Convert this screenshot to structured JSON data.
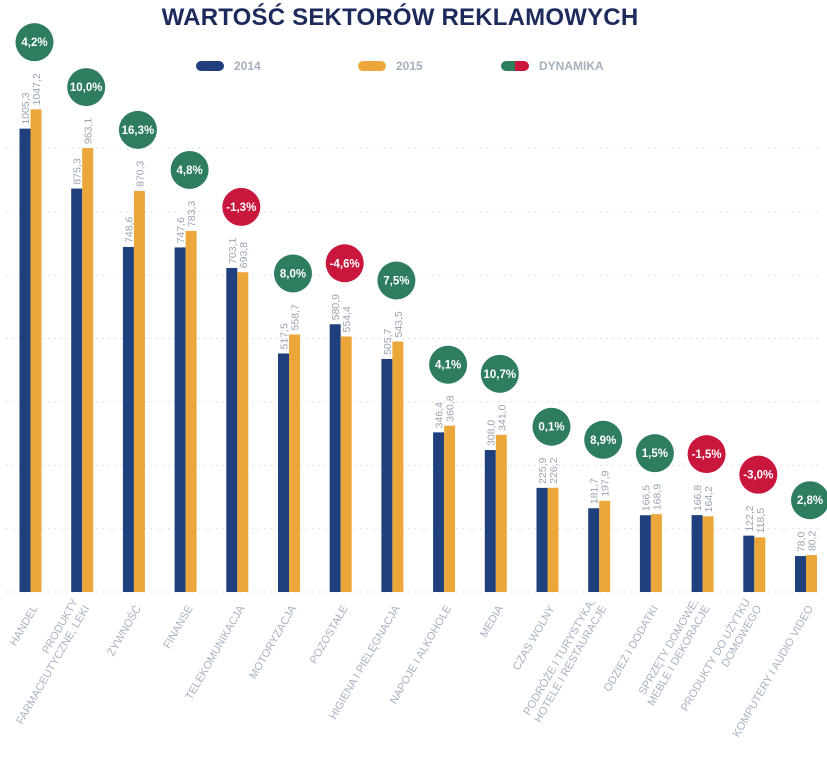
{
  "chart_data": {
    "type": "bar",
    "title": "WARTOŚĆ SEKTORÓW REKLAMOWYCH",
    "categories": [
      [
        "HANDEL"
      ],
      [
        "PRODUKTY",
        "FARMACEUTYCZNE, LEKI"
      ],
      [
        "ŻYWNOŚĆ"
      ],
      [
        "FINANSE"
      ],
      [
        "TELEKOMUNIKACJA"
      ],
      [
        "MOTORYZACJA"
      ],
      [
        "POZOSTAŁE"
      ],
      [
        "HIGIENA I PIELĘGNACJA"
      ],
      [
        "NAPOJE I ALKOHOLE"
      ],
      [
        "MEDIA"
      ],
      [
        "CZAS WOLNY"
      ],
      [
        "PODRÓŻE I TURYSTYKA,",
        "HOTELE I RESTAURACJE"
      ],
      [
        "ODZIEŻ I DODATKI"
      ],
      [
        "SPRZĘTY DOMOWE,",
        "MEBLE I DEKORACJE"
      ],
      [
        "PRODUKTY DO UŻYTKU",
        "DOMOWEGO"
      ],
      [
        "KOMPUTERY I AUDIO VIDEO"
      ]
    ],
    "series": [
      {
        "name": "2014",
        "color": "#1f3f7d",
        "values": [
          1005.3,
          875.3,
          748.6,
          747.6,
          703.1,
          517.5,
          580.9,
          505.7,
          346.4,
          308.0,
          225.9,
          181.7,
          166.5,
          166.8,
          122.2,
          78.0
        ],
        "labels": [
          "1005,3",
          "875,3",
          "748,6",
          "747,6",
          "703,1",
          "517,5",
          "580,9",
          "505,7",
          "346,4",
          "308,0",
          "225,9",
          "181,7",
          "166,5",
          "166,8",
          "122,2",
          "78,0"
        ]
      },
      {
        "name": "2015",
        "color": "#eca73b",
        "values": [
          1047.2,
          963.1,
          870.3,
          783.3,
          693.8,
          558.7,
          554.4,
          543.5,
          360.8,
          341.0,
          226.2,
          197.9,
          168.9,
          164.2,
          118.5,
          80.2
        ],
        "labels": [
          "1047,2",
          "963,1",
          "870,3",
          "783,3",
          "693,8",
          "558,7",
          "554,4",
          "543,5",
          "360,8",
          "341,0",
          "226,2",
          "197,9",
          "168,9",
          "164,2",
          "118,5",
          "80,2"
        ]
      }
    ],
    "dynamics": {
      "name": "DYNAMIKA",
      "labels": [
        "4,2%",
        "10,0%",
        "16,3%",
        "4,8%",
        "-1,3%",
        "8,0%",
        "-4,6%",
        "7,5%",
        "4,1%",
        "10,7%",
        "0,1%",
        "8,9%",
        "1,5%",
        "-1,5%",
        "-3,0%",
        "2,8%"
      ],
      "values": [
        4.2,
        10.0,
        16.3,
        4.8,
        -1.3,
        8.0,
        -4.6,
        7.5,
        4.1,
        10.7,
        0.1,
        8.9,
        1.5,
        -1.5,
        -3.0,
        2.8
      ],
      "positive_color": "#2e7d5f",
      "negative_color": "#c8163d"
    },
    "ylim": [
      0,
      1100
    ],
    "gridlines": [
      0,
      137.5,
      275,
      412.5,
      550,
      687.5,
      825,
      962.5
    ],
    "xlabel": "",
    "ylabel": ""
  },
  "legend": {
    "s2014": "2014",
    "s2015": "2015",
    "dyn": "DYNAMIKA"
  }
}
